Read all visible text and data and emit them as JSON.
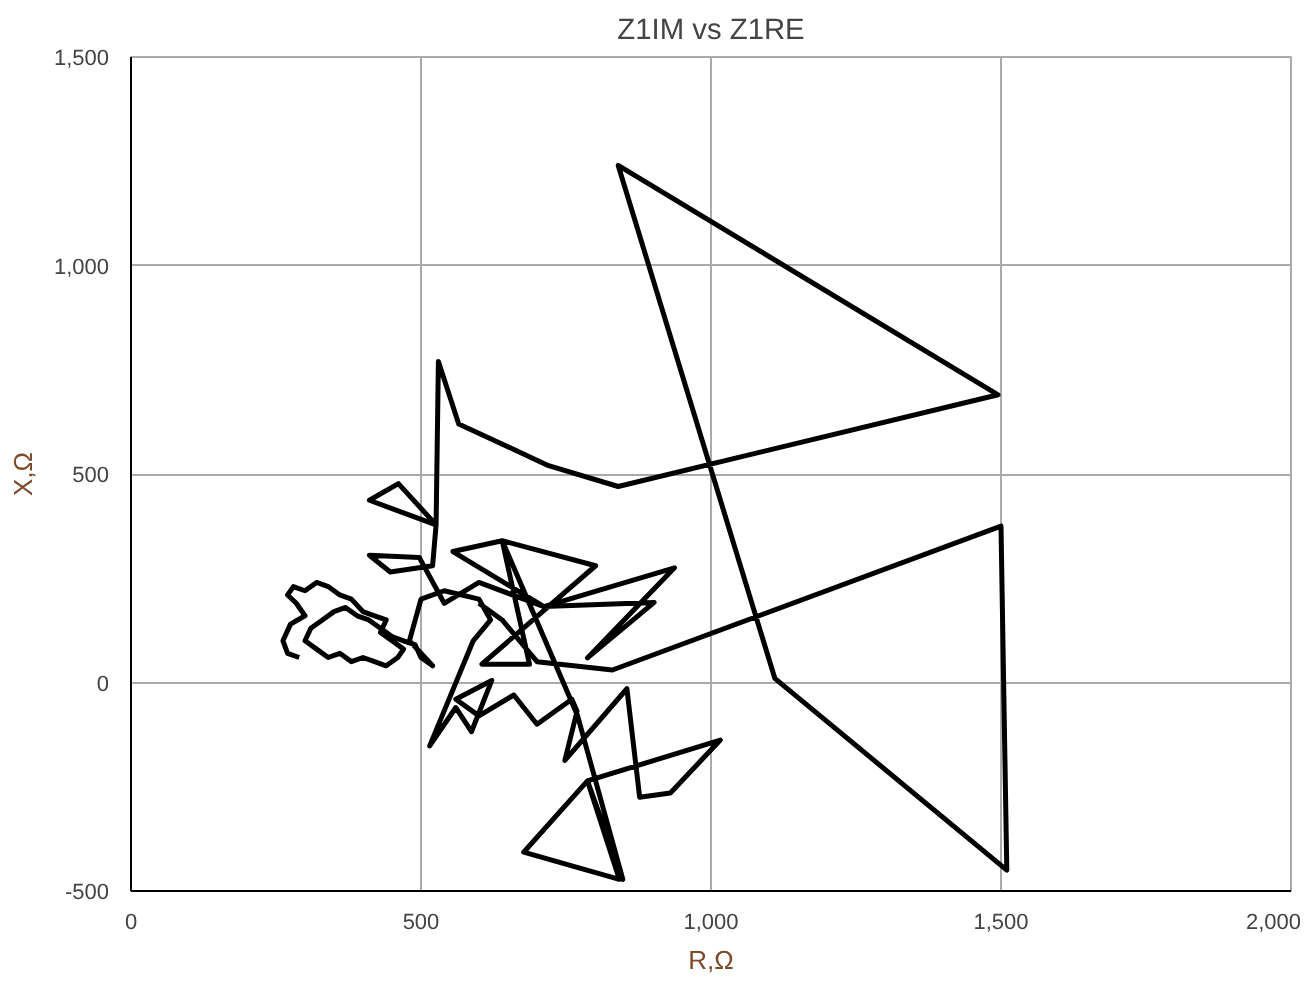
{
  "chart_data": {
    "type": "line",
    "title": "Z1IM vs Z1RE",
    "xlabel": "R,Ω",
    "ylabel": "X,Ω",
    "xlim": [
      0,
      2000
    ],
    "ylim": [
      -500,
      1500
    ],
    "xticks": [
      {
        "value": 0,
        "label": "0"
      },
      {
        "value": 500,
        "label": "500"
      },
      {
        "value": 1000,
        "label": "1,000"
      },
      {
        "value": 1500,
        "label": "1,500"
      },
      {
        "value": 2000,
        "label": "2,000"
      }
    ],
    "yticks": [
      {
        "value": -500,
        "label": "-500"
      },
      {
        "value": 0,
        "label": "0"
      },
      {
        "value": 500,
        "label": "500"
      },
      {
        "value": 1000,
        "label": "1,000"
      },
      {
        "value": 1500,
        "label": "1,500"
      }
    ],
    "grid": true,
    "marker": "none",
    "line_style": "solid",
    "series": [
      {
        "color": "#000000",
        "x": [
          290,
          270,
          262,
          275,
          300,
          285,
          270,
          280,
          300,
          320,
          340,
          360,
          380,
          400,
          420,
          440,
          430,
          450,
          470,
          460,
          440,
          420,
          400,
          380,
          360,
          340,
          320,
          300,
          310,
          330,
          350,
          370,
          390,
          410,
          430,
          450,
          470,
          490,
          500,
          520,
          480,
          500,
          540,
          600,
          620,
          590,
          515,
          560,
          587,
          622,
          560,
          600,
          660,
          700,
          760,
          769,
          748,
          855,
          877,
          930,
          1016,
          787,
          842,
          677,
          787,
          848,
          770,
          640,
          801,
          605,
          687,
          640,
          555,
          712,
          902,
          787,
          937,
          712,
          600,
          540,
          497,
          411,
          447,
          520,
          526,
          411,
          461,
          526,
          530,
          565,
          720,
          840,
          1495,
          840,
          1110,
          1510,
          1500,
          830,
          700,
          640,
          600
        ],
        "values": [
          60,
          70,
          100,
          140,
          160,
          190,
          210,
          230,
          220,
          240,
          230,
          210,
          200,
          170,
          160,
          150,
          120,
          100,
          80,
          60,
          40,
          50,
          60,
          50,
          70,
          60,
          80,
          100,
          130,
          150,
          170,
          180,
          160,
          150,
          130,
          110,
          100,
          90,
          60,
          40,
          100,
          200,
          220,
          200,
          150,
          100,
          -152,
          -60,
          -118,
          5,
          -40,
          -80,
          -30,
          -100,
          -40,
          -69,
          -187,
          -15,
          -275,
          -265,
          -138,
          -236,
          -472,
          -407,
          -236,
          -472,
          -80,
          340,
          280,
          44,
          44,
          340,
          314,
          182,
          192,
          59,
          275,
          182,
          240,
          190,
          300,
          305,
          265,
          280,
          378,
          437,
          477,
          378,
          770,
          620,
          520,
          470,
          690,
          1240,
          10,
          -450,
          375,
          30,
          50,
          150,
          190
        ]
      }
    ]
  }
}
